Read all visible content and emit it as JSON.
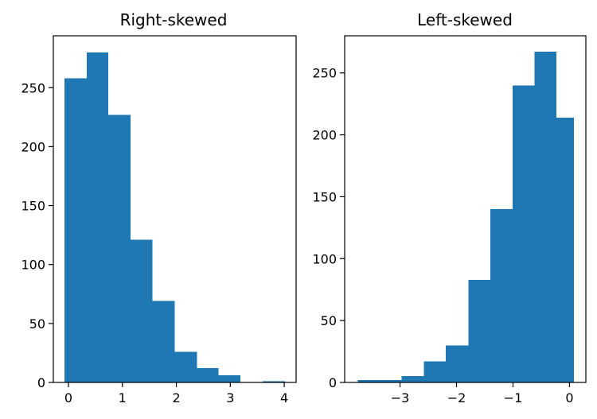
{
  "chart_data": [
    {
      "type": "bar",
      "title": "Right-skewed",
      "xlabel": "",
      "ylabel": "",
      "bin_edges": [
        -0.07,
        0.34,
        0.74,
        1.15,
        1.56,
        1.97,
        2.38,
        2.78,
        3.19,
        3.6,
        4.01
      ],
      "values": [
        258,
        280,
        227,
        121,
        69,
        26,
        12,
        6,
        0,
        1
      ],
      "xlim": [
        -0.28,
        4.22
      ],
      "ylim": [
        0,
        294
      ],
      "xticks": [
        0,
        1,
        2,
        3,
        4
      ],
      "xtick_labels": [
        "0",
        "1",
        "2",
        "3",
        "4"
      ],
      "yticks": [
        0,
        50,
        100,
        150,
        200,
        250
      ],
      "ytick_labels": [
        "0",
        "50",
        "100",
        "150",
        "200",
        "250"
      ],
      "color": "#1f77b4",
      "grid": false
    },
    {
      "type": "bar",
      "title": "Left-skewed",
      "xlabel": "",
      "ylabel": "",
      "bin_edges": [
        -3.75,
        -3.36,
        -2.97,
        -2.58,
        -2.19,
        -1.79,
        -1.4,
        -1.01,
        -0.62,
        -0.23,
        0.08
      ],
      "values": [
        2,
        2,
        5,
        17,
        30,
        83,
        140,
        240,
        267,
        214
      ],
      "xlim": [
        -3.98,
        0.29
      ],
      "ylim": [
        0,
        280
      ],
      "xticks": [
        -3,
        -2,
        -1,
        0
      ],
      "xtick_labels": [
        "−3",
        "−2",
        "−1",
        "0"
      ],
      "yticks": [
        0,
        50,
        100,
        150,
        200,
        250
      ],
      "ytick_labels": [
        "0",
        "50",
        "100",
        "150",
        "200",
        "250"
      ],
      "color": "#1f77b4",
      "grid": false
    }
  ]
}
